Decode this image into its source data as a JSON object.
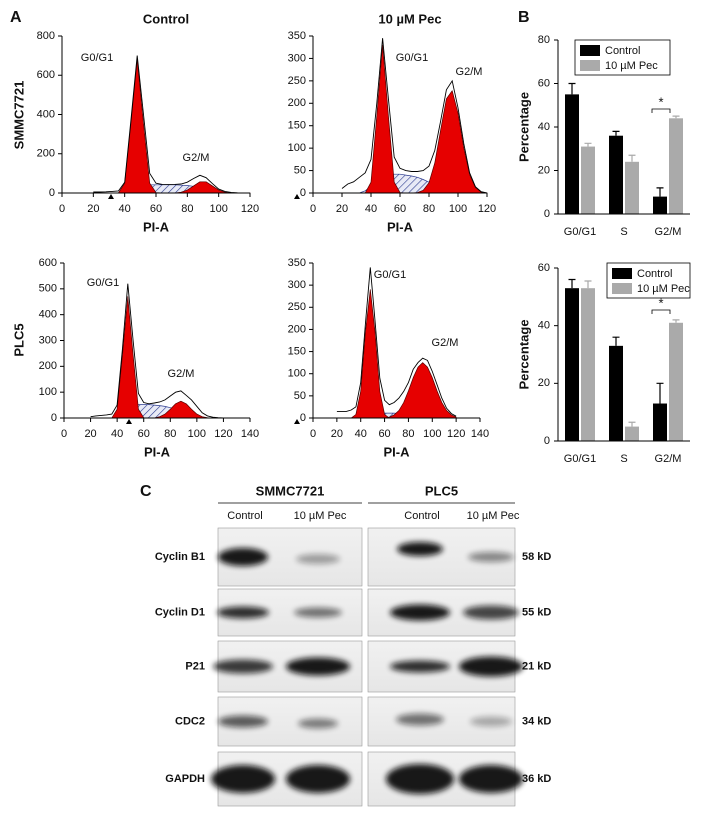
{
  "panels": [
    "A",
    "B",
    "C"
  ],
  "row_labels": [
    "SMMC7721",
    "PLC5"
  ],
  "chart_data": [
    {
      "type": "histogram-fit",
      "title": "Control",
      "xlabel": "PI-A",
      "annotations": [
        "G0/G1",
        "G2/M"
      ],
      "xlim": [
        0,
        120
      ],
      "xticks": [
        0,
        20,
        40,
        60,
        80,
        100,
        120
      ],
      "ylim": [
        0,
        800
      ],
      "yticks": [
        0,
        200,
        400,
        600,
        800
      ],
      "x": [
        20,
        24,
        28,
        32,
        36,
        40,
        44,
        48,
        52,
        56,
        60,
        64,
        68,
        72,
        76,
        80,
        84,
        88,
        92,
        96,
        100,
        104,
        108,
        112,
        116,
        120
      ],
      "series": [
        {
          "style": "hatch",
          "color": "#2b3a8f",
          "values": [
            0,
            0,
            0,
            0,
            0,
            0,
            10,
            30,
            40,
            42,
            42,
            42,
            42,
            42,
            40,
            38,
            34,
            28,
            18,
            8,
            2,
            0,
            0,
            0,
            0,
            0
          ]
        },
        {
          "style": "area",
          "color": "#e60000",
          "values": [
            0,
            0,
            0,
            0,
            0,
            50,
            354,
            680,
            354,
            50,
            2,
            0,
            0,
            0,
            0,
            0,
            0,
            0,
            0,
            0,
            0,
            0,
            0,
            0,
            0,
            0
          ]
        },
        {
          "style": "area",
          "color": "#e60000",
          "values": [
            0,
            0,
            0,
            0,
            0,
            0,
            0,
            0,
            0,
            0,
            0,
            0,
            0,
            0,
            4,
            15,
            36,
            57,
            57,
            36,
            15,
            4,
            1,
            0,
            0,
            0
          ]
        },
        {
          "style": "line",
          "color": "#000000",
          "values": [
            5,
            5,
            6,
            8,
            10,
            55,
            370,
            700,
            400,
            100,
            50,
            44,
            43,
            44,
            46,
            55,
            74,
            90,
            78,
            48,
            20,
            8,
            3,
            1,
            0,
            0
          ]
        }
      ]
    },
    {
      "type": "histogram-fit",
      "title": "10 µM Pec",
      "xlabel": "PI-A",
      "annotations": [
        "G0/G1",
        "G2/M"
      ],
      "xlim": [
        0,
        120
      ],
      "xticks": [
        0,
        20,
        40,
        60,
        80,
        100,
        120
      ],
      "ylim": [
        0,
        350
      ],
      "yticks": [
        0,
        50,
        100,
        150,
        200,
        250,
        300,
        350
      ],
      "x": [
        20,
        24,
        28,
        32,
        36,
        40,
        44,
        48,
        52,
        56,
        60,
        64,
        68,
        72,
        76,
        80,
        84,
        88,
        92,
        96,
        100,
        104,
        108,
        112,
        116,
        120
      ],
      "series": [
        {
          "style": "hatch",
          "color": "#2b3a8f",
          "values": [
            0,
            0,
            0,
            0,
            5,
            15,
            30,
            40,
            42,
            42,
            42,
            40,
            38,
            35,
            30,
            24,
            16,
            10,
            5,
            2,
            0,
            0,
            0,
            0,
            0,
            0
          ]
        },
        {
          "style": "area",
          "color": "#e60000",
          "values": [
            0,
            0,
            0,
            0,
            0,
            24,
            172,
            330,
            172,
            24,
            1,
            0,
            0,
            0,
            0,
            0,
            0,
            0,
            0,
            0,
            0,
            0,
            0,
            0,
            0,
            0
          ]
        },
        {
          "style": "area",
          "color": "#e60000",
          "values": [
            0,
            0,
            0,
            0,
            0,
            0,
            0,
            0,
            0,
            0,
            0,
            0,
            0,
            1,
            6,
            23,
            67,
            140,
            210,
            228,
            178,
            100,
            41,
            12,
            2,
            0
          ]
        },
        {
          "style": "line",
          "color": "#000000",
          "values": [
            10,
            20,
            25,
            35,
            45,
            75,
            200,
            345,
            210,
            80,
            55,
            50,
            48,
            48,
            50,
            60,
            95,
            160,
            230,
            250,
            190,
            110,
            45,
            14,
            3,
            0
          ]
        }
      ]
    },
    {
      "type": "histogram-fit",
      "xlabel": "PI-A",
      "annotations": [
        "G0/G1",
        "G2/M"
      ],
      "xlim": [
        0,
        140
      ],
      "xticks": [
        0,
        20,
        40,
        60,
        80,
        100,
        120,
        140
      ],
      "ylim": [
        0,
        600
      ],
      "yticks": [
        0,
        100,
        200,
        300,
        400,
        500,
        600
      ],
      "x": [
        20,
        24,
        28,
        32,
        36,
        40,
        44,
        48,
        52,
        56,
        60,
        64,
        68,
        72,
        76,
        80,
        84,
        88,
        92,
        96,
        100,
        104,
        108,
        112,
        116,
        120
      ],
      "series": [
        {
          "style": "hatch",
          "color": "#2b3a8f",
          "values": [
            0,
            0,
            0,
            0,
            0,
            5,
            20,
            40,
            50,
            52,
            52,
            52,
            50,
            48,
            45,
            40,
            34,
            26,
            16,
            8,
            3,
            1,
            0,
            0,
            0,
            0
          ]
        },
        {
          "style": "area",
          "color": "#e60000",
          "values": [
            0,
            0,
            0,
            0,
            0,
            34,
            245,
            470,
            245,
            34,
            1,
            0,
            0,
            0,
            0,
            0,
            0,
            0,
            0,
            0,
            0,
            0,
            0,
            0,
            0,
            0
          ]
        },
        {
          "style": "area",
          "color": "#e60000",
          "values": [
            0,
            0,
            0,
            0,
            0,
            0,
            0,
            0,
            0,
            0,
            0,
            0,
            0,
            5,
            15,
            34,
            55,
            65,
            55,
            34,
            15,
            5,
            1,
            0,
            0,
            0
          ]
        },
        {
          "style": "line",
          "color": "#000000",
          "values": [
            5,
            8,
            10,
            12,
            15,
            50,
            270,
            520,
            300,
            95,
            60,
            55,
            58,
            62,
            70,
            85,
            100,
            105,
            88,
            70,
            45,
            20,
            8,
            3,
            1,
            0
          ]
        }
      ]
    },
    {
      "type": "histogram-fit",
      "xlabel": "PI-A",
      "annotations": [
        "G0/G1",
        "G2/M"
      ],
      "xlim": [
        0,
        140
      ],
      "xticks": [
        0,
        20,
        40,
        60,
        80,
        100,
        120,
        140
      ],
      "ylim": [
        0,
        350
      ],
      "yticks": [
        0,
        50,
        100,
        150,
        200,
        250,
        300,
        350
      ],
      "x": [
        20,
        24,
        28,
        32,
        36,
        40,
        44,
        48,
        52,
        56,
        60,
        64,
        68,
        72,
        76,
        80,
        84,
        88,
        92,
        96,
        100,
        104,
        108,
        112,
        116,
        120
      ],
      "series": [
        {
          "style": "hatch",
          "color": "#2b3a8f",
          "values": [
            0,
            0,
            0,
            0,
            0,
            2,
            5,
            8,
            10,
            11,
            11,
            11,
            11,
            10,
            9,
            8,
            7,
            6,
            5,
            4,
            3,
            2,
            1,
            0,
            0,
            0
          ]
        },
        {
          "style": "area",
          "color": "#e60000",
          "values": [
            0,
            0,
            0,
            0,
            8,
            60,
            195,
            290,
            195,
            60,
            8,
            0,
            0,
            0,
            0,
            0,
            0,
            0,
            0,
            0,
            0,
            0,
            0,
            0,
            0,
            0
          ]
        },
        {
          "style": "area",
          "color": "#e60000",
          "values": [
            0,
            0,
            0,
            0,
            0,
            0,
            0,
            0,
            0,
            0,
            0,
            2,
            7,
            17,
            35,
            61,
            91,
            115,
            125,
            115,
            91,
            61,
            35,
            17,
            7,
            2
          ]
        },
        {
          "style": "line",
          "color": "#000000",
          "values": [
            15,
            15,
            15,
            18,
            25,
            80,
            215,
            340,
            220,
            90,
            40,
            30,
            35,
            45,
            60,
            80,
            110,
            125,
            135,
            130,
            105,
            75,
            45,
            22,
            10,
            4
          ]
        }
      ]
    },
    {
      "type": "bar",
      "ylabel": "Percentage",
      "annotations": [
        "*"
      ],
      "categories": [
        "G0/G1",
        "S",
        "G2/M"
      ],
      "ylim": [
        0,
        80
      ],
      "yticks": [
        0,
        20,
        40,
        60,
        80
      ],
      "series": [
        {
          "name": "Control",
          "color": "#000000",
          "values": [
            55,
            36,
            8
          ],
          "errors": [
            5,
            2,
            4
          ]
        },
        {
          "name": "10 µM Pec",
          "color": "#aaaaaa",
          "values": [
            31,
            24,
            44
          ],
          "errors": [
            1.5,
            3,
            1
          ]
        }
      ]
    },
    {
      "type": "bar",
      "ylabel": "Percentage",
      "annotations": [
        "*"
      ],
      "categories": [
        "G0/G1",
        "S",
        "G2/M"
      ],
      "ylim": [
        0,
        60
      ],
      "yticks": [
        0,
        20,
        40,
        60
      ],
      "series": [
        {
          "name": "Control",
          "color": "#000000",
          "values": [
            53,
            33,
            13
          ],
          "errors": [
            3,
            3,
            7
          ]
        },
        {
          "name": "10 µM Pec",
          "color": "#aaaaaa",
          "values": [
            53,
            5,
            41
          ],
          "errors": [
            2.5,
            1.5,
            1
          ]
        }
      ]
    }
  ],
  "western_blot": {
    "groups": [
      {
        "name": "SMMC7721",
        "lanes": [
          "Control",
          "10 µM Pec"
        ]
      },
      {
        "name": "PLC5",
        "lanes": [
          "Control",
          "10 µM Pec"
        ]
      }
    ],
    "rows": [
      {
        "protein": "Cyclin B1",
        "size": "58 kD"
      },
      {
        "protein": "Cyclin D1",
        "size": "55 kD"
      },
      {
        "protein": "P21",
        "size": "21 kD"
      },
      {
        "protein": "CDC2",
        "size": "34 kD"
      },
      {
        "protein": "GAPDH",
        "size": "36 kD"
      }
    ]
  }
}
